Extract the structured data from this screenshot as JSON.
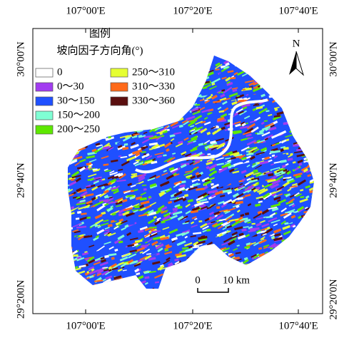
{
  "map": {
    "top_ticks": [
      "107°00'E",
      "107°20'E",
      "107°40'E"
    ],
    "bottom_ticks": [
      "107°00'E",
      "107°20'E",
      "107°40'E"
    ],
    "left_ticks": [
      "30°00'N",
      "29°40'N",
      "29°200N"
    ],
    "right_ticks": [
      "30°00'N",
      "29°40'N",
      "29°20'0N"
    ],
    "legend": {
      "title": "图例",
      "subtitle": "坡向因子方向角(°)",
      "items": [
        {
          "label": "0",
          "color": "#ffffff"
        },
        {
          "label": "0～30",
          "color": "#a23cf0"
        },
        {
          "label": "30～150",
          "color": "#1f50ff"
        },
        {
          "label": "150～200",
          "color": "#7fffd4"
        },
        {
          "label": "200～250",
          "color": "#5ee800"
        },
        {
          "label": "250～310",
          "color": "#e6ff33"
        },
        {
          "label": "310～330",
          "color": "#ff6a1a"
        },
        {
          "label": "330～360",
          "color": "#5a0f0f"
        }
      ]
    },
    "north": "N",
    "scale_bar": {
      "start": "0",
      "end": "10 km"
    }
  }
}
